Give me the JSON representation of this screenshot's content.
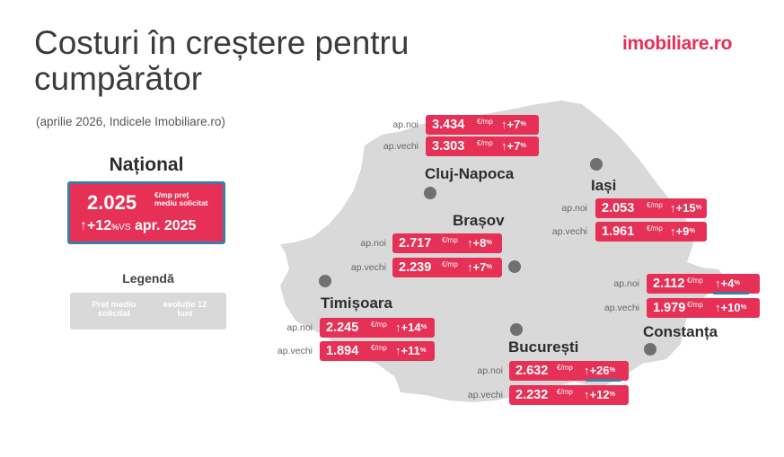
{
  "header": {
    "title": "Costuri în creștere pentru cumpărător",
    "subtitle": "(aprilie 2026, Indicele Imobiliare.ro)",
    "logo": "imobiliare.ro"
  },
  "national": {
    "title": "Național",
    "price": "2.025",
    "unit_line1": "€/mp preț",
    "unit_line2": "mediu solicitat",
    "change_arrow": "↑",
    "change": "+12",
    "change_pct": "%",
    "vs": "VS",
    "reference": "apr. 2025"
  },
  "legend": {
    "title": "Legendă",
    "item_a": "Preț mediu solicitat",
    "item_b": "evoluție 12 luni"
  },
  "colors": {
    "accent": "#e63056",
    "map": "#d9d9d9",
    "dot": "#707070",
    "highlight": "#3a7ea6"
  },
  "cities": [
    {
      "name": "Cluj-Napoca",
      "rows": [
        {
          "label": "ap.noi",
          "price": "3.434",
          "unit": "€/mp",
          "change": "↑+7",
          "pct": "%"
        },
        {
          "label": "ap.vechi",
          "price": "3.303",
          "unit": "€/mp",
          "change": "↑+7",
          "pct": "%"
        }
      ]
    },
    {
      "name": "Iași",
      "rows": [
        {
          "label": "ap.noi",
          "price": "2.053",
          "unit": "€/mp",
          "change": "↑+15",
          "pct": "%"
        },
        {
          "label": "ap.vechi",
          "price": "1.961",
          "unit": "€/mp",
          "change": "↑+9",
          "pct": "%"
        }
      ]
    },
    {
      "name": "Brașov",
      "rows": [
        {
          "label": "ap.noi",
          "price": "2.717",
          "unit": "€/mp",
          "change": "↑+8",
          "pct": "%"
        },
        {
          "label": "ap.vechi",
          "price": "2.239",
          "unit": "€/mp",
          "change": "↑+7",
          "pct": "%"
        }
      ]
    },
    {
      "name": "Timișoara",
      "rows": [
        {
          "label": "ap.noi",
          "price": "2.245",
          "unit": "€/mp",
          "change": "↑+14",
          "pct": "%"
        },
        {
          "label": "ap.vechi",
          "price": "1.894",
          "unit": "€/mp",
          "change": "↑+11",
          "pct": "%"
        }
      ]
    },
    {
      "name": "Constanța",
      "rows": [
        {
          "label": "ap.noi",
          "price": "2.112",
          "unit": "€/mp",
          "change": "↑+4",
          "pct": "%"
        },
        {
          "label": "ap.vechi",
          "price": "1.979",
          "unit": "€/mp",
          "change": "↑+10",
          "pct": "%"
        }
      ]
    },
    {
      "name": "București",
      "rows": [
        {
          "label": "ap.noi",
          "price": "2.632",
          "unit": "€/mp",
          "change": "↑+26",
          "pct": "%"
        },
        {
          "label": "ap.vechi",
          "price": "2.232",
          "unit": "€/mp",
          "change": "↑+12",
          "pct": "%"
        }
      ]
    }
  ]
}
